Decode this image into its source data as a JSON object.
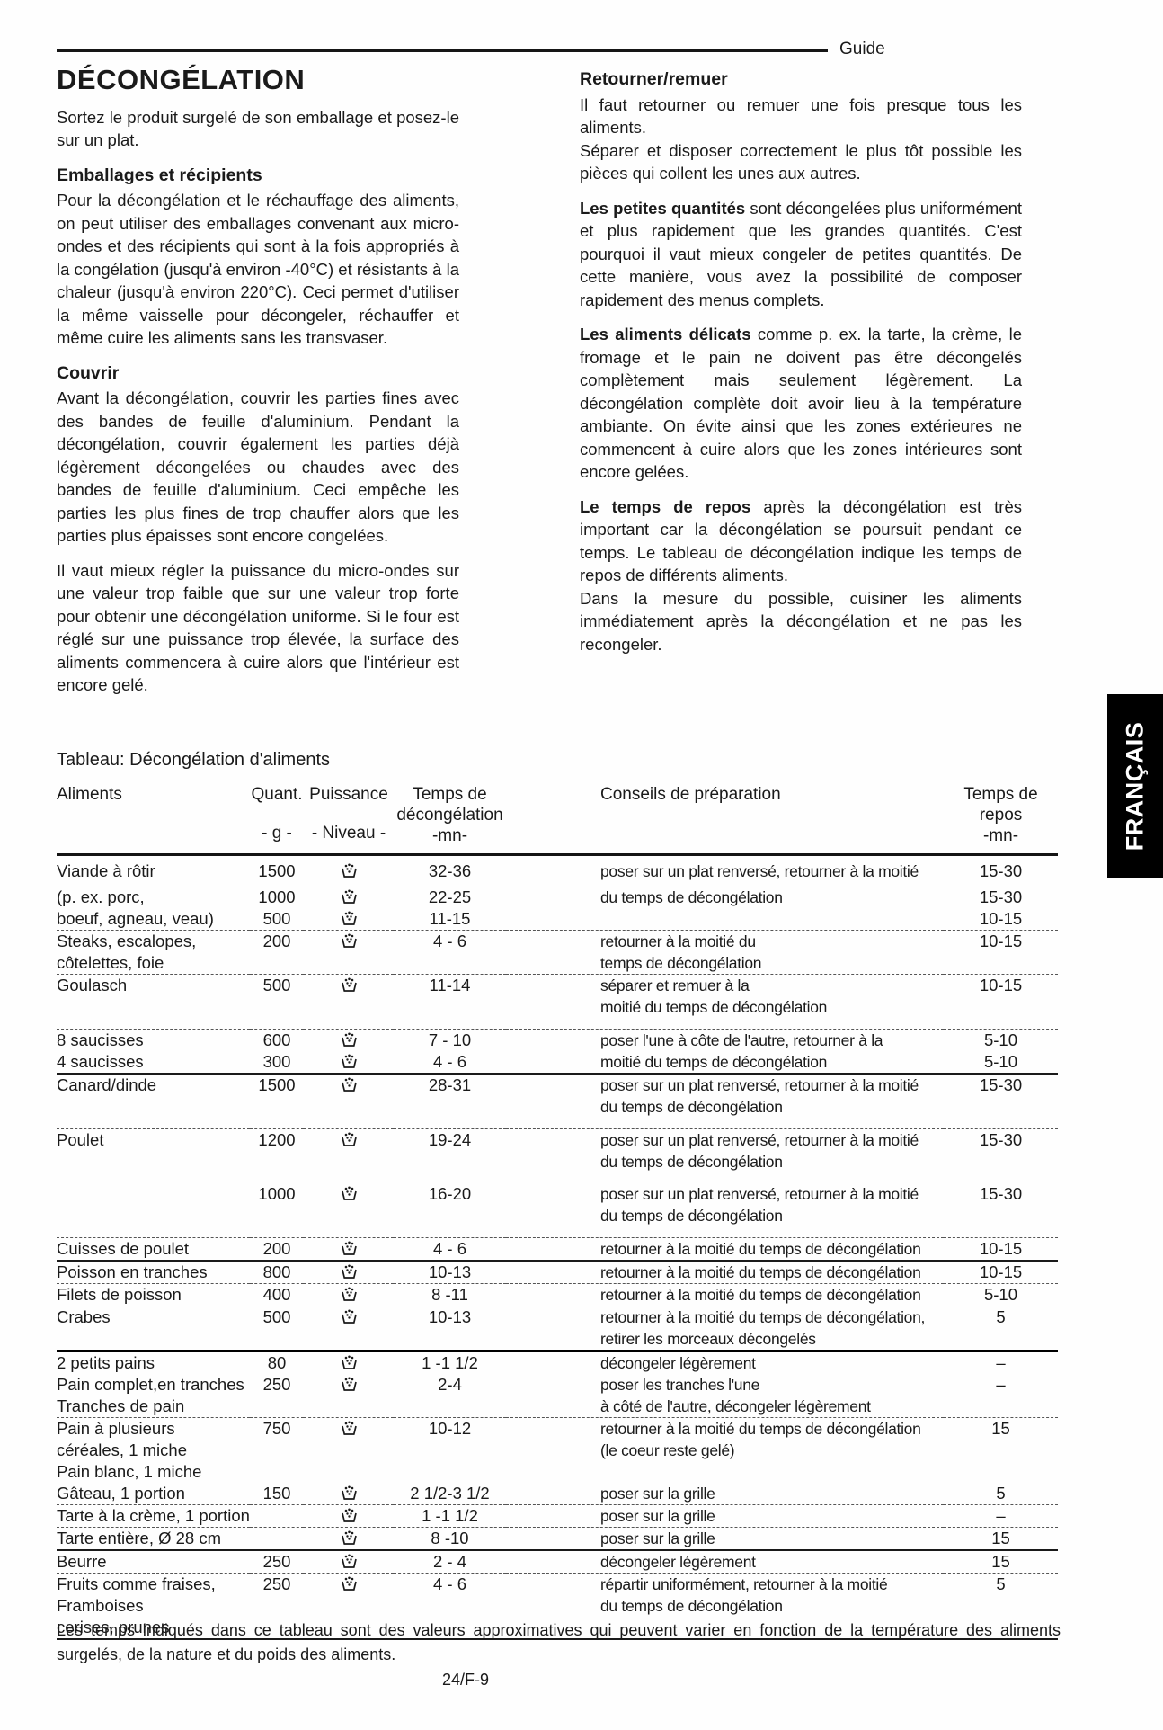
{
  "page": {
    "guide_label": "Guide",
    "language_tab": "FRANÇAIS",
    "page_number": "24/F-9",
    "colors": {
      "ink": "#1a1a1a",
      "paper": "#fefefe",
      "tab_bg": "#000000",
      "tab_text": "#ffffff"
    }
  },
  "left_column": {
    "title": "DÉCONGÉLATION",
    "intro": "Sortez le produit surgelé de son emballage et posez-le sur un plat.",
    "h_packaging": "Emballages et récipients",
    "p_packaging": "Pour la décongélation et le réchauffage des aliments, on peut utiliser des emballages convenant aux micro-ondes et des récipients qui sont à la fois appropriés à la congélation (jusqu'à environ -40°C) et résistants à la chaleur (jusqu'à environ 220°C). Ceci permet d'utiliser la même vaisselle pour décongeler, réchauffer et même cuire les aliments sans les transvaser.",
    "h_cover": "Couvrir",
    "p_cover": "Avant la décongélation, couvrir les parties fines avec des bandes de feuille d'aluminium. Pendant la décongélation, couvrir également les parties déjà légèrement décongelées ou chaudes avec des bandes de feuille d'aluminium. Ceci empêche les parties les plus fines de trop chauffer alors que les parties plus épaisses sont encore congelées.",
    "p_power": "Il vaut mieux régler la puissance du micro-ondes sur une valeur trop faible que sur une valeur trop forte pour obtenir une décongélation uniforme. Si le four est réglé sur une puissance trop élevée, la surface des aliments commencera à cuire alors que l'intérieur est encore gelé."
  },
  "right_column": {
    "h_turn": "Retourner/remuer",
    "p_turn1": "Il faut retourner ou remuer une fois presque tous les aliments.",
    "p_turn2": "Séparer et disposer correctement le plus tôt possible les pièces qui collent les unes aux autres.",
    "lead_small": "Les petites quantités",
    "p_small": "sont décongelées plus uniformément et plus rapidement que les grandes quantités. C'est pourquoi il vaut mieux congeler de petites quantités. De cette manière, vous avez la possibilité de composer rapidement des menus complets.",
    "lead_delicate": "Les aliments délicats",
    "p_delicate": "comme p. ex. la tarte, la crème, le fromage et le pain ne doivent pas être décongelés complètement mais seulement légèrement. La décongélation complète doit avoir lieu à la température ambiante. On évite ainsi que les zones extérieures ne commencent à cuire alors que les zones intérieures sont encore gelées.",
    "lead_rest": "Le temps de repos",
    "p_rest": "après la décongélation est très important car la décongélation se poursuit pendant ce temps. Le tableau de décongélation indique les temps de repos de différents aliments.",
    "p_cook": "Dans la mesure du possible, cuisiner les aliments immédiatement après la décongélation et ne pas les recongeler."
  },
  "table": {
    "title": "Tableau: Décongélation d'aliments",
    "power_icon": "defrost-icon",
    "headers": {
      "food": "Aliments",
      "qty": "Quant.",
      "qty_unit": "- g -",
      "power": "Puissance",
      "power_unit": "- Niveau -",
      "time_l1": "Temps de",
      "time_l2": "décongélation",
      "time_l3": "-mn-",
      "advice": "Conseils de préparation",
      "rest_l1": "Temps de",
      "rest_l2": "repos",
      "rest_l3": "-mn-"
    },
    "rows": [
      {
        "food": "Viande à rôtir",
        "qty": "1500",
        "icon": true,
        "time": "32-36",
        "advice": "poser sur un plat renversé, retourner à la moitié",
        "rest": "15-30",
        "border": "none"
      },
      {
        "food": "(p. ex. porc,",
        "qty": "1000",
        "icon": true,
        "time": "22-25",
        "advice": "du temps de décongélation",
        "rest": "15-30",
        "border": "none"
      },
      {
        "food": "boeuf, agneau, veau)",
        "qty": "500",
        "icon": true,
        "time": "11-15",
        "advice": "",
        "rest": "10-15",
        "border": "dashed"
      },
      {
        "food": "Steaks, escalopes,",
        "qty": "200",
        "icon": true,
        "time": "4 - 6",
        "advice": "retourner à la moitié du",
        "rest": "10-15",
        "border": "none"
      },
      {
        "food": "côtelettes, foie",
        "qty": "",
        "icon": false,
        "time": "",
        "advice": "temps de décongélation",
        "rest": "",
        "border": "dashed"
      },
      {
        "food": "Goulasch",
        "qty": "500",
        "icon": true,
        "time": "11-14",
        "advice": "séparer et remuer à la",
        "rest": "10-15",
        "border": "none"
      },
      {
        "food": "",
        "qty": "",
        "icon": false,
        "time": "",
        "advice": "moitié du temps de décongélation",
        "rest": "",
        "border": "dashed",
        "pad": true
      },
      {
        "food": "8 saucisses",
        "qty": "600",
        "icon": true,
        "time": "7 - 10",
        "advice": "poser l'une à côte de l'autre, retourner à la",
        "rest": "5-10",
        "border": "none"
      },
      {
        "food": "4 saucisses",
        "qty": "300",
        "icon": true,
        "time": "4 - 6",
        "advice": "moitié du temps de décongélation",
        "rest": "5-10",
        "border": "solid"
      },
      {
        "food": "Canard/dinde",
        "qty": "1500",
        "icon": true,
        "time": "28-31",
        "advice": "poser sur un plat renversé, retourner à la moitié",
        "rest": "15-30",
        "border": "none"
      },
      {
        "food": "",
        "qty": "",
        "icon": false,
        "time": "",
        "advice": "du temps de décongélation",
        "rest": "",
        "border": "dashed",
        "pad": true
      },
      {
        "food": "Poulet",
        "qty": "1200",
        "icon": true,
        "time": "19-24",
        "advice": "poser sur un plat renversé, retourner à la moitié",
        "rest": "15-30",
        "border": "none"
      },
      {
        "food": "",
        "qty": "",
        "icon": false,
        "time": "",
        "advice": "du temps de décongélation",
        "rest": "",
        "border": "none",
        "pad": true
      },
      {
        "food": "",
        "qty": "1000",
        "icon": true,
        "time": "16-20",
        "advice": "poser sur un plat renversé, retourner à la moitié",
        "rest": "15-30",
        "border": "none"
      },
      {
        "food": "",
        "qty": "",
        "icon": false,
        "time": "",
        "advice": "du temps de décongélation",
        "rest": "",
        "border": "dashed",
        "pad": true
      },
      {
        "food": "Cuisses de poulet",
        "qty": "200",
        "icon": true,
        "time": "4 - 6",
        "advice": "retourner à la moitié du temps de décongélation",
        "rest": "10-15",
        "border": "solid"
      },
      {
        "food": "Poisson en tranches",
        "qty": "800",
        "icon": true,
        "time": "10-13",
        "advice": "retourner à la moitié du temps de décongélation",
        "rest": "10-15",
        "border": "dashed"
      },
      {
        "food": "Filets de poisson",
        "qty": "400",
        "icon": true,
        "time": "8 -11",
        "advice": "retourner à la moitié du temps de décongélation",
        "rest": "5-10",
        "border": "dashed"
      },
      {
        "food": "Crabes",
        "qty": "500",
        "icon": true,
        "time": "10-13",
        "advice": "retourner à la moitié du temps de décongélation,",
        "rest": "5",
        "border": "none"
      },
      {
        "food": "",
        "qty": "",
        "icon": false,
        "time": "",
        "advice": "retirer les morceaux décongelés",
        "rest": "",
        "border": "thick"
      },
      {
        "food": "2 petits pains",
        "qty": "80",
        "icon": true,
        "time": "1 -1 1/2",
        "advice": "décongeler légèrement",
        "rest": "–",
        "border": "none"
      },
      {
        "food": "Pain complet,en tranches",
        "qty": "250",
        "icon": true,
        "time": "2-4",
        "advice": "poser les tranches l'une",
        "rest": "–",
        "border": "none"
      },
      {
        "food": "Tranches de pain",
        "qty": "",
        "icon": false,
        "time": "",
        "advice": "à côté de l'autre, décongeler légèrement",
        "rest": "",
        "border": "dashed"
      },
      {
        "food": "Pain à plusieurs",
        "qty": "750",
        "icon": true,
        "time": "10-12",
        "advice": "retourner à la moitié du temps de décongélation",
        "rest": "15",
        "border": "none"
      },
      {
        "food": "céréales, 1 miche",
        "qty": "",
        "icon": false,
        "time": "",
        "advice": "(le coeur reste gelé)",
        "rest": "",
        "border": "none"
      },
      {
        "food": "Pain blanc, 1 miche",
        "qty": "",
        "icon": false,
        "time": "",
        "advice": "",
        "rest": "",
        "border": "none"
      },
      {
        "food": "Gâteau, 1 portion",
        "qty": "150",
        "icon": true,
        "time": "2 1/2-3 1/2",
        "advice": "poser sur la grille",
        "rest": "5",
        "border": "dashed"
      },
      {
        "food": "Tarte à la crème, 1 portion",
        "qty": "",
        "icon": true,
        "time": "1 -1 1/2",
        "advice": "poser sur la grille",
        "rest": "–",
        "border": "dashed"
      },
      {
        "food": "Tarte entière, Ø 28 cm",
        "qty": "",
        "icon": true,
        "time": "8 -10",
        "advice": "poser sur la grille",
        "rest": "15",
        "border": "solid"
      },
      {
        "food": "Beurre",
        "qty": "250",
        "icon": true,
        "time": "2 - 4",
        "advice": "décongeler légèrement",
        "rest": "15",
        "border": "dashed"
      },
      {
        "food": "Fruits comme fraises,",
        "qty": "250",
        "icon": true,
        "time": "4 - 6",
        "advice": "répartir uniformément, retourner à la moitié",
        "rest": "5",
        "border": "none"
      },
      {
        "food": "Framboises",
        "qty": "",
        "icon": false,
        "time": "",
        "advice": "du temps de décongélation",
        "rest": "",
        "border": "none"
      },
      {
        "food": "cerises, prunes",
        "qty": "",
        "icon": false,
        "time": "",
        "advice": "",
        "rest": "",
        "border": "solid"
      }
    ],
    "footnote": "Les temps indiqués dans ce tableau sont des valeurs approximatives qui peuvent varier en fonction de la température des aliments surgelés, de la nature et du poids des aliments."
  }
}
